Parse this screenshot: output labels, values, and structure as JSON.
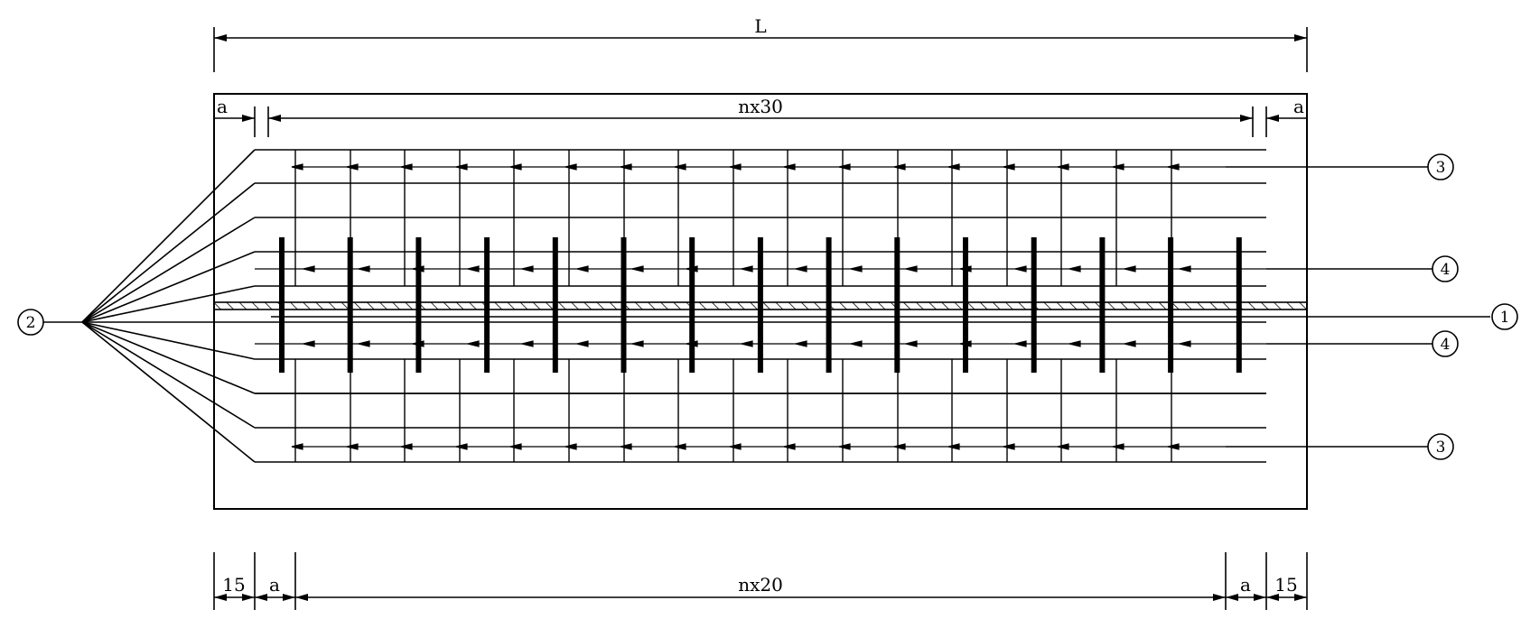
{
  "dimensions": {
    "overall_length": "L",
    "spacing_top": "nx30",
    "end_distance_left_top": "a",
    "end_distance_right_top": "a",
    "cover_left_bottom": "15",
    "end_distance_left_bottom": "a",
    "spacing_bottom": "nx20",
    "end_distance_right_bottom": "a",
    "cover_right_bottom": "15"
  },
  "callouts": {
    "item_1": "1",
    "item_2": "2",
    "item_3_top": "3",
    "item_4_upper": "4",
    "item_4_lower": "4",
    "item_3_bottom": "3"
  }
}
